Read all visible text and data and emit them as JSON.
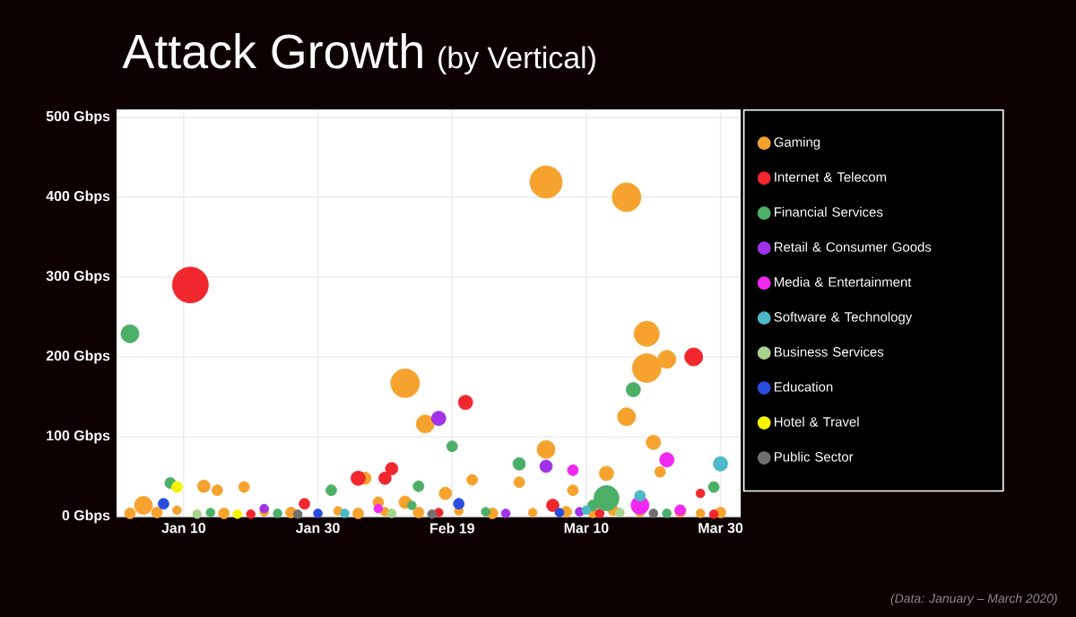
{
  "chart_data": {
    "type": "bubble",
    "title": "Attack Growth",
    "subtitle": "(by Vertical)",
    "annotations": [
      "(Data: January – March 2020)"
    ],
    "xlim": [
      "2019-12-31",
      "2020-04-02"
    ],
    "xticks": [
      {
        "value": "2020-01-10",
        "label": "Jan 10"
      },
      {
        "value": "2020-01-30",
        "label": "Jan 30"
      },
      {
        "value": "2020-02-19",
        "label": "Feb 19"
      },
      {
        "value": "2020-03-10",
        "label": "Mar 10"
      },
      {
        "value": "2020-03-30",
        "label": "Mar 30"
      }
    ],
    "ylim": [
      0,
      510
    ],
    "yticks": [
      {
        "value": 0,
        "label": "0 Gbps"
      },
      {
        "value": 100,
        "label": "100 Gbps"
      },
      {
        "value": 200,
        "label": "200 Gbps"
      },
      {
        "value": 300,
        "label": "300 Gbps"
      },
      {
        "value": 400,
        "label": "400 Gbps"
      },
      {
        "value": 500,
        "label": "500 Gbps"
      }
    ],
    "grid": true,
    "legend": "right",
    "series": [
      {
        "name": "Gaming",
        "color": "#f5a32e",
        "x": [
          "2020-03-04",
          "2020-03-16",
          "2020-03-19",
          "2020-03-19",
          "2020-03-22",
          "2020-03-16",
          "2020-03-20",
          "2020-03-21",
          "2020-02-12",
          "2020-02-15",
          "2020-03-04",
          "2020-02-29",
          "2020-03-13",
          "2020-02-22",
          "2020-03-08",
          "2020-01-13",
          "2020-01-15",
          "2020-01-19",
          "2020-02-06",
          "2020-02-18",
          "2020-01-04",
          "2020-02-12",
          "2020-02-08",
          "2020-01-02",
          "2020-01-06",
          "2020-01-09",
          "2020-01-16",
          "2020-01-22",
          "2020-01-26",
          "2020-02-02",
          "2020-02-05",
          "2020-02-09",
          "2020-02-14",
          "2020-02-20",
          "2020-02-25",
          "2020-03-02",
          "2020-03-07",
          "2020-03-11",
          "2020-03-14",
          "2020-03-18",
          "2020-03-24",
          "2020-03-27",
          "2020-03-30"
        ],
        "values": [
          419,
          400,
          229,
          186,
          197,
          125,
          93,
          56,
          167,
          116,
          84,
          43,
          54,
          46,
          33,
          38,
          33,
          37,
          48,
          29,
          14,
          18,
          18,
          4,
          5,
          8,
          4,
          6,
          5,
          7,
          4,
          6,
          5,
          7,
          4,
          5,
          6,
          4,
          8,
          5,
          6,
          4,
          5
        ],
        "sizes": [
          0.81,
          0.64,
          0.49,
          0.64,
          0.25,
          0.25,
          0.16,
          0.09,
          0.64,
          0.25,
          0.25,
          0.09,
          0.16,
          0.09,
          0.09,
          0.12,
          0.09,
          0.09,
          0.12,
          0.12,
          0.25,
          0.12,
          0.09,
          0.09,
          0.09,
          0.06,
          0.09,
          0.06,
          0.09,
          0.06,
          0.09,
          0.06,
          0.09,
          0.06,
          0.09,
          0.06,
          0.09,
          0.06,
          0.09,
          0.06,
          0.09,
          0.06,
          0.09
        ]
      },
      {
        "name": "Internet & Telecom",
        "color": "#f0282e",
        "x": [
          "2020-01-11",
          "2020-03-26",
          "2020-02-21",
          "2020-03-27",
          "2020-02-05",
          "2020-02-09",
          "2020-02-10",
          "2020-03-05",
          "2020-01-28",
          "2020-01-20",
          "2020-02-17",
          "2020-03-12",
          "2020-03-29"
        ],
        "values": [
          290,
          200,
          143,
          29,
          48,
          48,
          60,
          14,
          16,
          3,
          5,
          4,
          3
        ],
        "sizes": [
          1,
          0.25,
          0.16,
          0.06,
          0.16,
          0.12,
          0.12,
          0.12,
          0.09,
          0.06,
          0.06,
          0.06,
          0.06
        ]
      },
      {
        "name": "Financial Services",
        "color": "#4caf68",
        "x": [
          "2020-01-02",
          "2020-03-17",
          "2020-02-19",
          "2020-02-29",
          "2020-03-13",
          "2020-03-29",
          "2020-01-08",
          "2020-02-01",
          "2020-02-14",
          "2020-02-13",
          "2020-03-11",
          "2020-01-14",
          "2020-01-24",
          "2020-02-24",
          "2020-03-22"
        ],
        "values": [
          229,
          159,
          88,
          66,
          23,
          37,
          42,
          33,
          38,
          14,
          14,
          5,
          4,
          6,
          4
        ],
        "sizes": [
          0.25,
          0.16,
          0.09,
          0.12,
          0.49,
          0.09,
          0.09,
          0.09,
          0.09,
          0.06,
          0.09,
          0.06,
          0.06,
          0.06,
          0.06
        ]
      },
      {
        "name": "Retail & Consumer Goods",
        "color": "#a033e8",
        "x": [
          "2020-02-17",
          "2020-03-04",
          "2020-01-22",
          "2020-03-09",
          "2020-02-27"
        ],
        "values": [
          123,
          63,
          10,
          6,
          4
        ],
        "sizes": [
          0.16,
          0.12,
          0.06,
          0.06,
          0.06
        ]
      },
      {
        "name": "Media & Entertainment",
        "color": "#f029f0",
        "x": [
          "2020-03-22",
          "2020-03-08",
          "2020-03-18",
          "2020-02-08",
          "2020-03-24"
        ],
        "values": [
          71,
          58,
          14,
          10,
          8
        ],
        "sizes": [
          0.16,
          0.09,
          0.25,
          0.06,
          0.09
        ]
      },
      {
        "name": "Software & Technology",
        "color": "#4db8c8",
        "x": [
          "2020-03-30",
          "2020-03-18",
          "2020-03-10",
          "2020-02-03"
        ],
        "values": [
          66,
          26,
          8,
          4
        ],
        "sizes": [
          0.16,
          0.09,
          0.06,
          0.06
        ]
      },
      {
        "name": "Business Services",
        "color": "#a6d48c",
        "x": [
          "2020-01-12",
          "2020-02-10",
          "2020-03-15"
        ],
        "values": [
          3,
          4,
          5
        ],
        "sizes": [
          0.06,
          0.06,
          0.06
        ]
      },
      {
        "name": "Education",
        "color": "#2b4de0",
        "x": [
          "2020-01-07",
          "2020-02-20",
          "2020-01-30",
          "2020-03-06"
        ],
        "values": [
          16,
          16,
          4,
          5
        ],
        "sizes": [
          0.09,
          0.09,
          0.06,
          0.06
        ]
      },
      {
        "name": "Hotel & Travel",
        "color": "#f5f500",
        "x": [
          "2020-01-09",
          "2020-01-18"
        ],
        "values": [
          37,
          3
        ],
        "sizes": [
          0.09,
          0.06
        ]
      },
      {
        "name": "Public Sector",
        "color": "#707070",
        "x": [
          "2020-02-16",
          "2020-03-20",
          "2020-01-27"
        ],
        "values": [
          3,
          4,
          3
        ],
        "sizes": [
          0.06,
          0.06,
          0.06
        ]
      }
    ]
  }
}
